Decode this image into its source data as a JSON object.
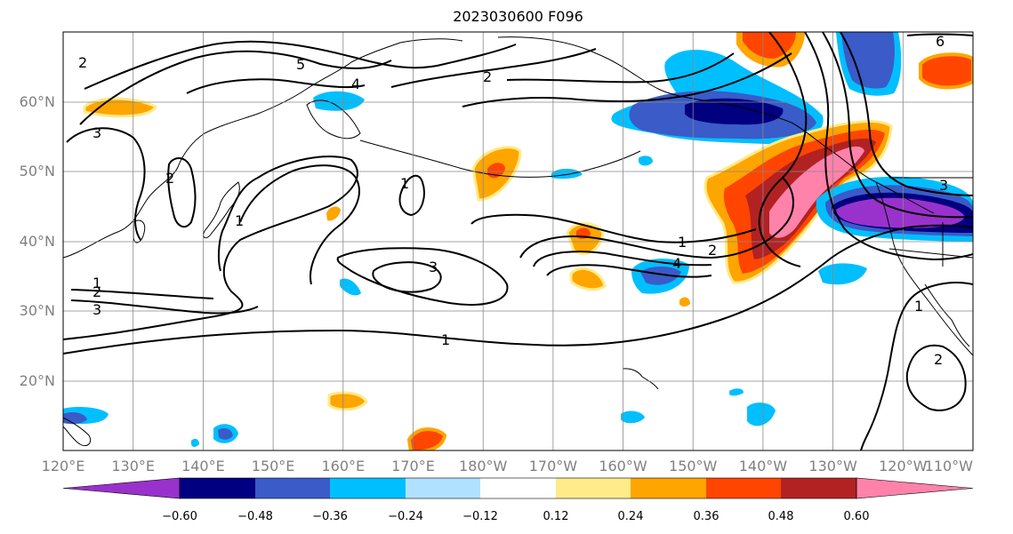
{
  "title": "2023030600 F096",
  "map": {
    "lon_ticks": [
      "120°E",
      "130°E",
      "140°E",
      "150°E",
      "160°E",
      "170°E",
      "180°W",
      "170°W",
      "160°W",
      "150°W",
      "140°W",
      "130°W",
      "120°W",
      "110°W"
    ],
    "lat_ticks": [
      "20°N",
      "30°N",
      "40°N",
      "50°N",
      "60°N"
    ],
    "grid": true,
    "contour_labels": [
      "5",
      "4",
      "2",
      "6",
      "2",
      "3",
      "2",
      "1",
      "1",
      "2",
      "3",
      "4",
      "1",
      "1",
      "2",
      "3",
      "3",
      "1",
      "1",
      "2"
    ]
  },
  "colorbar": {
    "ticks": [
      "−0.60",
      "−0.48",
      "−0.36",
      "−0.24",
      "−0.12",
      "0.12",
      "0.24",
      "0.36",
      "0.48",
      "0.60"
    ],
    "colors": [
      "#9932CC",
      "#000080",
      "#3A5BC8",
      "#00BFFF",
      "#B0E2FF",
      "#FFFFFF",
      "#FFEB8A",
      "#FFA500",
      "#FF4500",
      "#B22222",
      "#FF82AB"
    ],
    "extend": "both"
  }
}
